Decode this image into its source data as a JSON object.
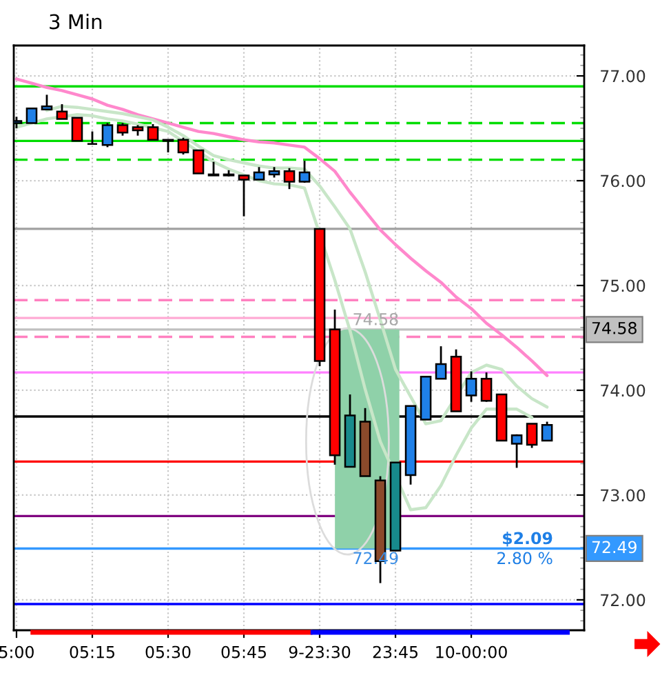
{
  "chart_data": {
    "type": "candlestick",
    "title": "3 Min",
    "categories": [
      "5:00",
      null,
      null,
      null,
      null,
      "05:15",
      null,
      null,
      null,
      null,
      "05:30",
      null,
      null,
      null,
      null,
      "05:45",
      null,
      null,
      null,
      null,
      "9-23:30",
      null,
      null,
      null,
      null,
      "23:45",
      null,
      null,
      null,
      null,
      "10-00:00",
      null,
      null,
      null,
      null,
      null
    ],
    "ohlc": [
      [
        76.55,
        76.61,
        76.5,
        76.57
      ],
      [
        76.55,
        76.69,
        76.55,
        76.69
      ],
      [
        76.68,
        76.82,
        76.68,
        76.71
      ],
      [
        76.66,
        76.73,
        76.59,
        76.59
      ],
      [
        76.6,
        76.6,
        76.38,
        76.38
      ],
      [
        76.35,
        76.47,
        76.35,
        76.35
      ],
      [
        76.34,
        76.55,
        76.32,
        76.53
      ],
      [
        76.53,
        76.55,
        76.43,
        76.46
      ],
      [
        76.51,
        76.53,
        76.43,
        76.48
      ],
      [
        76.51,
        76.54,
        76.39,
        76.39
      ],
      [
        76.38,
        76.39,
        76.27,
        76.39
      ],
      [
        76.39,
        76.41,
        76.25,
        76.27
      ],
      [
        76.29,
        76.29,
        76.07,
        76.07
      ],
      [
        76.06,
        76.18,
        76.05,
        76.05
      ],
      [
        76.06,
        76.1,
        76.04,
        76.05
      ],
      [
        76.05,
        76.05,
        75.66,
        76.01
      ],
      [
        76.01,
        76.13,
        76.01,
        76.08
      ],
      [
        76.06,
        76.13,
        76.03,
        76.09
      ],
      [
        76.09,
        76.12,
        75.92,
        75.99
      ],
      [
        75.99,
        76.19,
        75.98,
        76.08
      ],
      [
        75.54,
        75.54,
        74.23,
        74.28
      ],
      [
        74.58,
        74.77,
        73.29,
        73.38
      ],
      [
        73.27,
        73.96,
        73.27,
        73.76
      ],
      [
        73.7,
        73.83,
        73.18,
        73.18
      ],
      [
        73.14,
        73.18,
        72.16,
        72.37
      ],
      [
        72.47,
        73.31,
        72.47,
        73.31
      ],
      [
        73.19,
        73.85,
        73.1,
        73.85
      ],
      [
        73.72,
        74.13,
        73.72,
        74.13
      ],
      [
        74.11,
        74.42,
        74.11,
        74.25
      ],
      [
        74.32,
        74.39,
        73.8,
        73.8
      ],
      [
        73.95,
        74.18,
        73.89,
        74.11
      ],
      [
        74.11,
        74.17,
        73.89,
        73.9
      ],
      [
        73.96,
        73.96,
        73.52,
        73.52
      ],
      [
        73.49,
        73.58,
        73.26,
        73.57
      ],
      [
        73.68,
        73.68,
        73.45,
        73.48
      ],
      [
        73.52,
        73.7,
        73.52,
        73.67
      ]
    ],
    "colors": [
      "#1f80e8",
      "#1f80e8",
      "#1f80e8",
      "#ff0000",
      "#ff0000",
      "#000000",
      "#1f80e8",
      "#ff0000",
      "#ff0000",
      "#ff0000",
      "#1f80e8",
      "#ff0000",
      "#ff0000",
      "#ff0000",
      "#ff0000",
      "#ff0000",
      "#1f80e8",
      "#1f80e8",
      "#ff0000",
      "#1f80e8",
      "#ff0000",
      "#ff0000",
      "#178a8c",
      "#8b4a2b",
      "#8b4a2b",
      "#178a8c",
      "#1f80e8",
      "#1f80e8",
      "#1f80e8",
      "#ff0000",
      "#1f80e8",
      "#ff0000",
      "#ff0000",
      "#1f80e8",
      "#ff0000",
      "#1f80e8"
    ],
    "series": [
      {
        "type": "line",
        "color": "#ff88cc",
        "values": [
          76.97,
          76.93,
          76.89,
          76.86,
          76.82,
          76.78,
          76.72,
          76.68,
          76.63,
          76.59,
          76.55,
          76.51,
          76.47,
          76.45,
          76.42,
          76.39,
          76.37,
          76.36,
          76.34,
          76.32,
          76.21,
          76.09,
          75.89,
          75.71,
          75.53,
          75.39,
          75.26,
          75.14,
          75.03,
          74.89,
          74.78,
          74.64,
          74.53,
          74.41,
          74.28,
          74.14
        ]
      },
      {
        "type": "line",
        "color": "#c8e6c8",
        "values": [
          null,
          null,
          76.67,
          76.71,
          76.7,
          76.68,
          76.66,
          76.64,
          76.61,
          76.58,
          76.51,
          76.43,
          76.33,
          76.24,
          76.2,
          76.17,
          76.14,
          76.12,
          76.12,
          76.11,
          75.95,
          75.75,
          75.54,
          75.13,
          74.67,
          74.2,
          null,
          73.68,
          73.71,
          null,
          74.17,
          74.24,
          74.2,
          74.04,
          73.92,
          73.84
        ]
      },
      {
        "type": "line",
        "color": "#c8e6c8",
        "values": [
          76.51,
          null,
          76.59,
          null,
          76.63,
          76.62,
          76.59,
          76.57,
          76.54,
          null,
          76.47,
          null,
          null,
          76.18,
          76.11,
          null,
          76.0,
          75.97,
          75.96,
          75.93,
          null,
          75.05,
          74.57,
          74.01,
          73.51,
          null,
          72.86,
          72.88,
          73.09,
          73.38,
          73.64,
          73.82,
          null,
          73.82,
          73.74,
          null
        ]
      }
    ],
    "ylim": [
      71.71,
      77.29
    ],
    "yticks": [
      {
        "value": 72,
        "label": "72.00"
      },
      {
        "value": 73,
        "label": "73.00"
      },
      {
        "value": 74,
        "label": "74.00"
      },
      {
        "value": 75,
        "label": "75.00"
      },
      {
        "value": 76,
        "label": "76.00"
      },
      {
        "value": 77,
        "label": "77.00"
      }
    ],
    "grid": true,
    "bands": [
      {
        "axis": "y",
        "from": 72.49,
        "to": 74.58,
        "color": "#8fd1a9"
      }
    ],
    "ref_lines": [
      {
        "axis": "y",
        "value": 76.9,
        "color": "#00dd00",
        "line_style": "solid"
      },
      {
        "axis": "y",
        "value": 76.55,
        "color": "#00dd00",
        "line_style": "dashed"
      },
      {
        "axis": "y",
        "value": 76.38,
        "color": "#00dd00",
        "line_style": "solid"
      },
      {
        "axis": "y",
        "value": 76.2,
        "color": "#00dd00",
        "line_style": "dashed"
      },
      {
        "axis": "y",
        "value": 75.54,
        "color": "#a0a0a0",
        "line_style": "solid"
      },
      {
        "axis": "y",
        "value": 74.86,
        "color": "#ff80c0",
        "line_style": "dashed"
      },
      {
        "axis": "y",
        "value": 74.69,
        "color": "#ffaad4",
        "line_style": "solid"
      },
      {
        "axis": "y",
        "value": 74.51,
        "color": "#ff80c0",
        "line_style": "dashed"
      },
      {
        "axis": "y",
        "value": 74.17,
        "color": "#ff80ff",
        "line_style": "solid"
      },
      {
        "axis": "y",
        "value": 73.75,
        "color": "#000000",
        "line_style": "solid"
      },
      {
        "axis": "y",
        "value": 73.32,
        "color": "#ff0000",
        "line_style": "solid"
      },
      {
        "axis": "y",
        "value": 72.8,
        "color": "#800080",
        "line_style": "solid"
      },
      {
        "axis": "y",
        "value": 71.96,
        "color": "#0000ff",
        "line_style": "solid"
      },
      {
        "axis": "y",
        "value": 74.58,
        "label": "74.58",
        "color": "#c0c0c0",
        "line_style": "solid"
      },
      {
        "axis": "y",
        "value": 72.49,
        "label": "72.49",
        "color": "#3399ff",
        "line_style": "solid"
      }
    ],
    "annotations": [
      {
        "text": "74.58",
        "y": 74.58
      },
      {
        "text": "72.49",
        "y": 72.49
      },
      {
        "text": "$2.09",
        "y": 72.49
      },
      {
        "text": "2.80 %",
        "y": 72.49
      }
    ]
  }
}
